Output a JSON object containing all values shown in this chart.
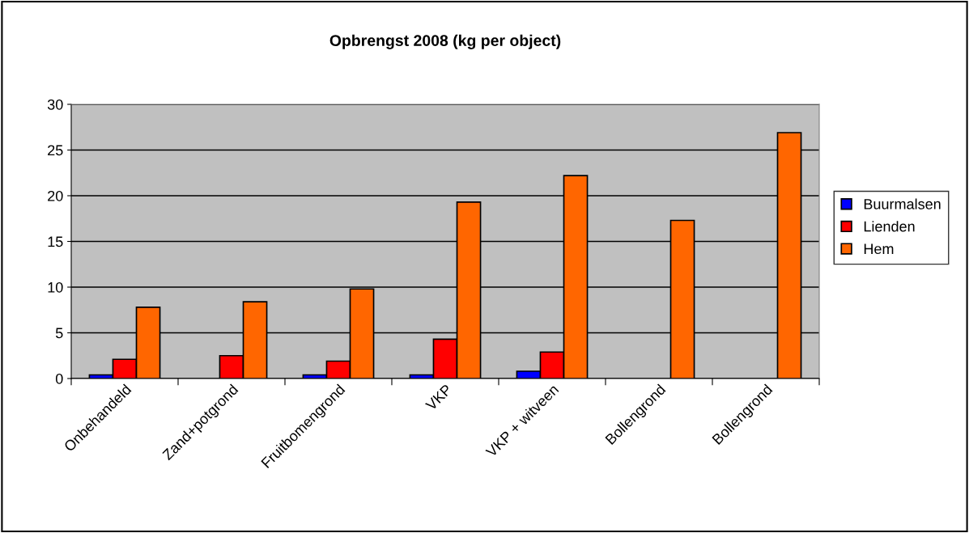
{
  "chart_data": {
    "type": "bar",
    "title": "Opbrengst 2008 (kg per object)",
    "categories": [
      "Onbehandeld",
      "Zand+potgrond",
      "Fruitbomengrond",
      "VKP",
      "VKP + witveen",
      "Bollengrond",
      "Bollengrond"
    ],
    "series": [
      {
        "name": "Buurmalsen",
        "color": "#0000ff",
        "values": [
          0.4,
          null,
          0.4,
          0.4,
          0.8,
          null,
          null
        ]
      },
      {
        "name": "Lienden",
        "color": "#ff0000",
        "values": [
          2.1,
          2.5,
          1.9,
          4.3,
          2.9,
          null,
          null
        ]
      },
      {
        "name": "Hem",
        "color": "#ff6600",
        "values": [
          7.8,
          8.4,
          9.8,
          19.3,
          22.2,
          17.3,
          26.9
        ]
      }
    ],
    "ylim": [
      0,
      30
    ],
    "yticks": [
      0,
      5,
      10,
      15,
      20,
      25,
      30
    ],
    "grid": "y",
    "legend": "right"
  }
}
